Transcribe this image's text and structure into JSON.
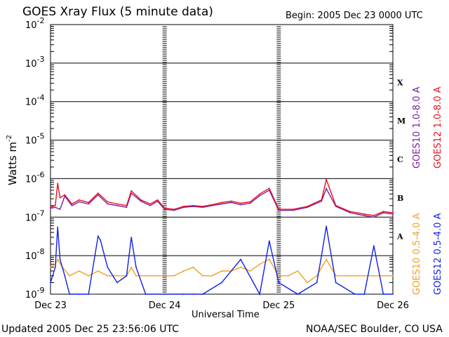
{
  "header": {
    "title": "GOES Xray Flux (5 minute data)",
    "begin": "Begin:  2005 Dec 23 0000 UTC"
  },
  "footer": {
    "updated": "Updated 2005 Dec 25 23:56:06 UTC",
    "source": "NOAA/SEC Boulder, CO USA"
  },
  "colors": {
    "goes10_long": "#7a1fa0",
    "goes12_long": "#e8101c",
    "goes10_short": "#f0a020",
    "goes12_short": "#1020e8",
    "frame": "#000000"
  },
  "chart_data": {
    "type": "line",
    "title": "GOES Xray Flux (5 minute data)",
    "xlabel": "Universal Time",
    "ylabel": "Watts m",
    "ylabel_superscript": "-2",
    "yscale": "log",
    "ylim": [
      1e-09,
      0.01
    ],
    "xlim": [
      "2005-12-23T00:00",
      "2005-12-26T00:00"
    ],
    "x_ticks": [
      "Dec 23",
      "Dec 24",
      "Dec 25",
      "Dec 26"
    ],
    "y_ticks": [
      {
        "base": "10",
        "exp": "-9"
      },
      {
        "base": "10",
        "exp": "-8"
      },
      {
        "base": "10",
        "exp": "-7"
      },
      {
        "base": "10",
        "exp": "-6"
      },
      {
        "base": "10",
        "exp": "-5"
      },
      {
        "base": "10",
        "exp": "-4"
      },
      {
        "base": "10",
        "exp": "-3"
      },
      {
        "base": "10",
        "exp": "-2"
      }
    ],
    "flare_classes": [
      "X",
      "M",
      "C",
      "B",
      "A"
    ],
    "grid": "horizontal lines at each decade",
    "legend_right": [
      {
        "text": "GOES10 1.0-8.0 A",
        "color": "#7a1fa0"
      },
      {
        "text": "GOES12 1.0-8.0 A",
        "color": "#e8101c"
      },
      {
        "text": "GOES10 0.5-4.0 A",
        "color": "#f0a020"
      },
      {
        "text": "GOES12 0.5-4.0 A",
        "color": "#1020e8"
      }
    ],
    "series": [
      {
        "name": "GOES10 1.0-8.0 A",
        "color": "#7a1fa0",
        "x": [
          "2005-12-23T00:00",
          "2005-12-23T01:00",
          "2005-12-23T02:00",
          "2005-12-23T03:00",
          "2005-12-23T04:30",
          "2005-12-23T06:00",
          "2005-12-23T08:00",
          "2005-12-23T10:00",
          "2005-12-23T12:00",
          "2005-12-23T14:00",
          "2005-12-23T16:00",
          "2005-12-23T17:00",
          "2005-12-23T19:00",
          "2005-12-23T21:00",
          "2005-12-23T22:30",
          "2005-12-24T00:00",
          "2005-12-24T02:00",
          "2005-12-24T04:00",
          "2005-12-24T06:00",
          "2005-12-24T08:00",
          "2005-12-24T10:00",
          "2005-12-24T12:00",
          "2005-12-24T14:00",
          "2005-12-24T16:00",
          "2005-12-24T18:00",
          "2005-12-24T20:00",
          "2005-12-24T22:00",
          "2005-12-25T00:00",
          "2005-12-25T03:00",
          "2005-12-25T06:00",
          "2005-12-25T09:00",
          "2005-12-25T10:00",
          "2005-12-25T12:00",
          "2005-12-25T15:00",
          "2005-12-25T18:00",
          "2005-12-25T20:00",
          "2005-12-25T22:00",
          "2005-12-26T00:00"
        ],
        "y": [
          1.7e-07,
          1.8e-07,
          1.6e-07,
          3.5e-07,
          2e-07,
          2.5e-07,
          2.2e-07,
          3.8e-07,
          2.2e-07,
          2e-07,
          1.8e-07,
          4.2e-07,
          2.6e-07,
          2e-07,
          2.6e-07,
          1.6e-07,
          1.5e-07,
          1.8e-07,
          1.9e-07,
          1.8e-07,
          2e-07,
          2.2e-07,
          2.4e-07,
          2.1e-07,
          2.3e-07,
          3.6e-07,
          5e-07,
          1.5e-07,
          1.5e-07,
          1.8e-07,
          2.6e-07,
          5.5e-07,
          1.9e-07,
          1.3e-07,
          1.1e-07,
          1e-07,
          1.3e-07,
          1.2e-07
        ]
      },
      {
        "name": "GOES12 1.0-8.0 A",
        "color": "#e8101c",
        "x": [
          "2005-12-23T00:00",
          "2005-12-23T01:00",
          "2005-12-23T01:30",
          "2005-12-23T02:00",
          "2005-12-23T03:00",
          "2005-12-23T04:30",
          "2005-12-23T06:00",
          "2005-12-23T08:00",
          "2005-12-23T10:00",
          "2005-12-23T12:00",
          "2005-12-23T14:00",
          "2005-12-23T16:00",
          "2005-12-23T17:00",
          "2005-12-23T19:00",
          "2005-12-23T21:00",
          "2005-12-23T22:30",
          "2005-12-24T00:00",
          "2005-12-24T02:00",
          "2005-12-24T04:00",
          "2005-12-24T06:00",
          "2005-12-24T08:00",
          "2005-12-24T10:00",
          "2005-12-24T12:00",
          "2005-12-24T14:00",
          "2005-12-24T16:00",
          "2005-12-24T18:00",
          "2005-12-24T20:00",
          "2005-12-24T22:00",
          "2005-12-25T00:00",
          "2005-12-25T03:00",
          "2005-12-25T06:00",
          "2005-12-25T09:00",
          "2005-12-25T10:00",
          "2005-12-25T12:00",
          "2005-12-25T15:00",
          "2005-12-25T18:00",
          "2005-12-25T20:00",
          "2005-12-25T22:00",
          "2005-12-26T00:00"
        ],
        "y": [
          1.8e-07,
          2e-07,
          7.5e-07,
          3.2e-07,
          3.8e-07,
          2.2e-07,
          2.8e-07,
          2.4e-07,
          4.2e-07,
          2.5e-07,
          2.2e-07,
          2e-07,
          4.8e-07,
          2.8e-07,
          2.2e-07,
          2.8e-07,
          1.7e-07,
          1.6e-07,
          1.9e-07,
          2e-07,
          1.9e-07,
          2.1e-07,
          2.4e-07,
          2.6e-07,
          2.3e-07,
          2.5e-07,
          4e-07,
          5.6e-07,
          1.6e-07,
          1.6e-07,
          1.9e-07,
          2.8e-07,
          9.5e-07,
          2e-07,
          1.4e-07,
          1.2e-07,
          1.1e-07,
          1.4e-07,
          1.3e-07
        ]
      },
      {
        "name": "GOES10 0.5-4.0 A",
        "color": "#f0a020",
        "x": [
          "2005-12-23T00:00",
          "2005-12-23T01:00",
          "2005-12-23T01:30",
          "2005-12-23T02:30",
          "2005-12-23T04:00",
          "2005-12-23T06:00",
          "2005-12-23T08:00",
          "2005-12-23T10:00",
          "2005-12-23T12:00",
          "2005-12-23T14:00",
          "2005-12-23T16:00",
          "2005-12-23T17:00",
          "2005-12-23T18:00",
          "2005-12-23T20:00",
          "2005-12-24T00:00",
          "2005-12-24T02:00",
          "2005-12-24T04:00",
          "2005-12-24T06:00",
          "2005-12-24T08:00",
          "2005-12-24T10:00",
          "2005-12-24T12:00",
          "2005-12-24T14:00",
          "2005-12-24T16:00",
          "2005-12-24T18:00",
          "2005-12-24T20:00",
          "2005-12-24T22:00",
          "2005-12-25T00:00",
          "2005-12-25T02:00",
          "2005-12-25T04:00",
          "2005-12-25T06:00",
          "2005-12-25T08:00",
          "2005-12-25T10:00",
          "2005-12-25T12:00",
          "2005-12-25T15:00",
          "2005-12-25T18:00",
          "2005-12-25T20:00",
          "2005-12-25T22:00",
          "2005-12-26T00:00"
        ],
        "y": [
          5e-09,
          6e-09,
          8e-09,
          5e-09,
          3e-09,
          4e-09,
          3e-09,
          4e-09,
          3e-09,
          3e-09,
          3e-09,
          5e-09,
          3e-09,
          3e-09,
          3e-09,
          3e-09,
          4e-09,
          5e-09,
          3e-09,
          3e-09,
          4e-09,
          4e-09,
          5e-09,
          4e-09,
          6e-09,
          8e-09,
          3e-09,
          3e-09,
          4e-09,
          2e-09,
          3e-09,
          8e-09,
          3e-09,
          3e-09,
          3e-09,
          3e-09,
          3e-09,
          3e-09
        ]
      },
      {
        "name": "GOES12 0.5-4.0 A",
        "color": "#1020e8",
        "x": [
          "2005-12-23T00:00",
          "2005-12-23T01:00",
          "2005-12-23T01:30",
          "2005-12-23T02:00",
          "2005-12-23T03:00",
          "2005-12-23T04:00",
          "2005-12-23T06:00",
          "2005-12-23T08:00",
          "2005-12-23T10:00",
          "2005-12-23T10:30",
          "2005-12-23T12:00",
          "2005-12-23T14:00",
          "2005-12-23T16:00",
          "2005-12-23T17:00",
          "2005-12-23T18:00",
          "2005-12-23T20:00",
          "2005-12-24T00:00",
          "2005-12-24T04:00",
          "2005-12-24T06:00",
          "2005-12-24T08:00",
          "2005-12-24T12:00",
          "2005-12-24T16:00",
          "2005-12-24T20:00",
          "2005-12-24T22:00",
          "2005-12-25T00:00",
          "2005-12-25T04:00",
          "2005-12-25T08:00",
          "2005-12-25T09:00",
          "2005-12-25T10:00",
          "2005-12-25T12:00",
          "2005-12-25T16:00",
          "2005-12-25T18:00",
          "2005-12-25T20:00",
          "2005-12-25T22:00",
          "2005-12-26T00:00"
        ],
        "y": [
          2e-09,
          5e-09,
          5.5e-08,
          8e-09,
          3e-09,
          1e-09,
          1e-09,
          1e-09,
          3.2e-08,
          2.5e-08,
          5e-09,
          2e-09,
          3e-09,
          3e-08,
          5e-09,
          1e-09,
          1e-09,
          1e-09,
          1e-09,
          1e-09,
          2e-09,
          8e-09,
          1e-09,
          2.4e-08,
          2e-09,
          1e-09,
          2e-09,
          1e-08,
          5.8e-08,
          2e-09,
          1e-09,
          1e-09,
          1.8e-08,
          1e-09,
          1e-09
        ]
      }
    ]
  }
}
